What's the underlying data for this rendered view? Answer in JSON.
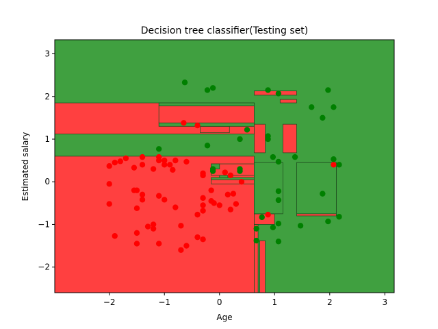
{
  "chart_data": {
    "type": "scatter",
    "title": "Decision tree classifier(Testing set)",
    "xlabel": "Age",
    "ylabel": "Estimated salary",
    "xlim": [
      -2.99,
      3.17
    ],
    "ylim": [
      -2.6,
      3.33
    ],
    "xticks": [
      -2,
      -1,
      0,
      1,
      2,
      3
    ],
    "yticks": [
      -2,
      -1,
      0,
      1,
      2,
      3
    ],
    "xtick_labels": [
      "−2",
      "−1",
      "0",
      "1",
      "2",
      "3"
    ],
    "ytick_labels": [
      "−2",
      "−1",
      "0",
      "1",
      "2",
      "3"
    ],
    "grid": false,
    "colors": {
      "region_class_0": "#ff4040",
      "region_class_1": "#40a040",
      "point_class_0": "#ff0000",
      "point_class_1": "#008000",
      "boundary": "#205020"
    },
    "regions_class_0": [
      {
        "x": [
          -2.99,
          0.63
        ],
        "y": [
          -2.6,
          0.6
        ]
      },
      {
        "x": [
          -2.99,
          0.63
        ],
        "y": [
          1.12,
          1.85
        ]
      },
      {
        "x": [
          -1.1,
          0.63
        ],
        "y": [
          1.38,
          1.78
        ]
      },
      {
        "x": [
          -0.35,
          0.18
        ],
        "y": [
          1.15,
          1.3
        ]
      },
      {
        "x": [
          0.63,
          0.7
        ],
        "y": [
          -2.6,
          -1.0
        ]
      },
      {
        "x": [
          0.73,
          0.83
        ],
        "y": [
          -2.6,
          -1.38
        ]
      },
      {
        "x": [
          0.63,
          1.0
        ],
        "y": [
          -1.0,
          -0.75
        ]
      },
      {
        "x": [
          0.63,
          1.0
        ],
        "y": [
          -0.75,
          -0.4
        ]
      },
      {
        "x": [
          0.63,
          0.83
        ],
        "y": [
          0.68,
          1.35
        ]
      },
      {
        "x": [
          1.15,
          1.4
        ],
        "y": [
          0.68,
          1.35
        ]
      },
      {
        "x": [
          1.4,
          2.12
        ],
        "y": [
          -0.8,
          0.45
        ]
      },
      {
        "x": [
          0.63,
          1.4
        ],
        "y": [
          2.03,
          2.13
        ]
      },
      {
        "x": [
          1.1,
          1.4
        ],
        "y": [
          1.85,
          1.93
        ]
      },
      {
        "x": [
          -0.15,
          0.63
        ],
        "y": [
          0.15,
          0.42
        ]
      },
      {
        "x": [
          -0.15,
          0.63
        ],
        "y": [
          -0.05,
          0.05
        ]
      }
    ],
    "regions_class_1": [
      {
        "x": [
          -1.1,
          0.63
        ],
        "y": [
          1.78,
          1.85
        ]
      },
      {
        "x": [
          -1.1,
          0.63
        ],
        "y": [
          1.3,
          1.38
        ]
      },
      {
        "x": [
          -0.15,
          0.0
        ],
        "y": [
          0.3,
          0.42
        ]
      },
      {
        "x": [
          0.0,
          0.15
        ],
        "y": [
          0.05,
          0.15
        ]
      },
      {
        "x": [
          -0.15,
          0.63
        ],
        "y": [
          0.05,
          0.1
        ]
      },
      {
        "x": [
          0.63,
          1.15
        ],
        "y": [
          -0.75,
          0.45
        ]
      },
      {
        "x": [
          1.4,
          2.12
        ],
        "y": [
          -0.75,
          0.45
        ]
      }
    ],
    "series": [
      {
        "name": "",
        "class": 0,
        "points": [
          [
            -2.0,
            0.37
          ],
          [
            -1.9,
            0.45
          ],
          [
            -1.8,
            0.48
          ],
          [
            -1.7,
            0.55
          ],
          [
            -1.55,
            0.33
          ],
          [
            -1.4,
            0.4
          ],
          [
            -1.4,
            0.58
          ],
          [
            -1.2,
            0.3
          ],
          [
            -1.1,
            0.5
          ],
          [
            -1.1,
            0.58
          ],
          [
            -1.0,
            0.5
          ],
          [
            -0.9,
            0.4
          ],
          [
            -0.85,
            0.28
          ],
          [
            -0.8,
            0.5
          ],
          [
            -0.6,
            0.47
          ],
          [
            -1.0,
            0.4
          ],
          [
            -2.0,
            -0.05
          ],
          [
            -1.55,
            -0.2
          ],
          [
            -1.5,
            -0.2
          ],
          [
            -1.4,
            -0.3
          ],
          [
            -1.4,
            -0.42
          ],
          [
            -1.5,
            -0.62
          ],
          [
            -2.0,
            -0.52
          ],
          [
            -1.1,
            -0.33
          ],
          [
            -1.0,
            -0.42
          ],
          [
            -0.8,
            -0.6
          ],
          [
            -0.4,
            -0.77
          ],
          [
            -0.3,
            -0.38
          ],
          [
            -0.3,
            -0.55
          ],
          [
            -0.3,
            -0.68
          ],
          [
            -0.3,
            0.15
          ],
          [
            -0.3,
            0.2
          ],
          [
            -0.15,
            -0.2
          ],
          [
            -0.15,
            -0.45
          ],
          [
            -0.1,
            -0.5
          ],
          [
            0.0,
            -0.55
          ],
          [
            0.1,
            0.22
          ],
          [
            0.15,
            -0.3
          ],
          [
            0.2,
            0.15
          ],
          [
            0.2,
            -0.65
          ],
          [
            0.25,
            -0.28
          ],
          [
            0.3,
            -0.52
          ],
          [
            0.4,
            0.0
          ],
          [
            -1.9,
            -1.27
          ],
          [
            -1.5,
            -1.2
          ],
          [
            -1.5,
            -1.45
          ],
          [
            -1.3,
            -1.05
          ],
          [
            -1.2,
            -1.0
          ],
          [
            -1.2,
            -1.1
          ],
          [
            -1.1,
            -1.45
          ],
          [
            -0.7,
            -1.03
          ],
          [
            -0.7,
            -1.6
          ],
          [
            -0.6,
            -1.5
          ],
          [
            -0.4,
            -1.3
          ],
          [
            -0.3,
            -1.35
          ],
          [
            -0.65,
            1.38
          ],
          [
            -0.4,
            1.32
          ],
          [
            0.88,
            -0.77
          ],
          [
            2.07,
            0.4
          ]
        ]
      },
      {
        "name": "",
        "class": 1,
        "points": [
          [
            -0.63,
            2.33
          ],
          [
            -0.22,
            2.15
          ],
          [
            -0.12,
            2.2
          ],
          [
            0.88,
            2.15
          ],
          [
            1.07,
            2.07
          ],
          [
            1.97,
            2.15
          ],
          [
            1.67,
            1.75
          ],
          [
            1.87,
            1.5
          ],
          [
            2.07,
            1.75
          ],
          [
            0.37,
            1.0
          ],
          [
            0.5,
            1.22
          ],
          [
            0.88,
            1.07
          ],
          [
            0.88,
            1.0
          ],
          [
            -1.1,
            0.77
          ],
          [
            -0.22,
            0.85
          ],
          [
            0.97,
            0.58
          ],
          [
            1.07,
            0.47
          ],
          [
            1.37,
            0.58
          ],
          [
            2.07,
            0.53
          ],
          [
            2.17,
            0.4
          ],
          [
            -0.12,
            0.3
          ],
          [
            -0.12,
            0.25
          ],
          [
            0.37,
            0.3
          ],
          [
            0.37,
            0.25
          ],
          [
            1.87,
            -0.28
          ],
          [
            1.07,
            -0.22
          ],
          [
            1.07,
            -0.43
          ],
          [
            0.77,
            -0.83
          ],
          [
            0.67,
            -1.1
          ],
          [
            0.97,
            -1.07
          ],
          [
            1.07,
            -0.98
          ],
          [
            1.47,
            -1.03
          ],
          [
            1.97,
            -0.93
          ],
          [
            2.17,
            -0.82
          ],
          [
            0.67,
            -1.38
          ],
          [
            1.07,
            -1.4
          ]
        ]
      }
    ]
  }
}
